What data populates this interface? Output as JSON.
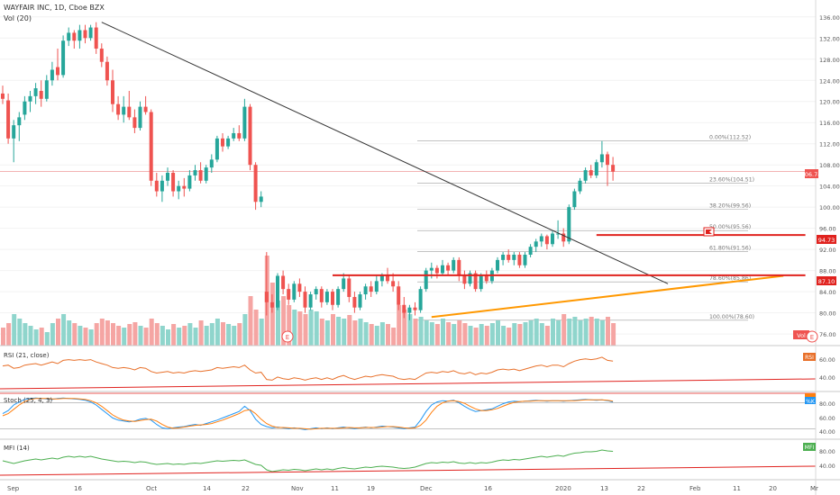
{
  "header": {
    "title": "WAYFAIR INC, 1D, Cboe BZX",
    "vol_label": "Vol (20)"
  },
  "panes": {
    "rsi": {
      "label": "RSI (21, close)",
      "badge": "RSI",
      "ticks": [
        "60.00",
        "40.00"
      ]
    },
    "stoch": {
      "label": "Stoch (25, 4, 3)",
      "badge": "%K",
      "ticks": [
        "80.00",
        "60.00",
        "40.00"
      ]
    },
    "mfi": {
      "label": "MFI (14)",
      "badge": "MFI",
      "ticks": [
        "80.00",
        "40.00"
      ]
    }
  },
  "price_axis": {
    "ticks": [
      "136.00",
      "132.00",
      "128.00",
      "124.00",
      "120.00",
      "116.00",
      "112.00",
      "108.00",
      "104.00",
      "100.00",
      "96.00",
      "92.00",
      "88.00",
      "84.00",
      "80.00",
      "76.00"
    ]
  },
  "price_badges": {
    "last": "106.74",
    "level_upper": "94.73",
    "level_lower": "87.10",
    "vol": "Vol"
  },
  "fibonacci": [
    {
      "text": "0.00%(112.52)",
      "price": 112.52
    },
    {
      "text": "23.60%(104.51)",
      "price": 104.51
    },
    {
      "text": "38.20%(99.56)",
      "price": 99.56
    },
    {
      "text": "50.00%(95.56)",
      "price": 95.56
    },
    {
      "text": "61.80%(91.56)",
      "price": 91.56
    },
    {
      "text": "78.60%(85.86)",
      "price": 85.86
    },
    {
      "text": "100.00%(78.60)",
      "price": 78.6
    }
  ],
  "time_axis": [
    "Sep",
    "16",
    "Oct",
    "14",
    "22",
    "Nov",
    "11",
    "19",
    "Dec",
    "16",
    "2020",
    "13",
    "22",
    "Feb",
    "11",
    "20",
    "Mr"
  ],
  "earnings_markers": [
    "E",
    "E"
  ],
  "colors": {
    "up": "#26a69a",
    "down": "#ef5350",
    "support": "#e0221e",
    "trend_up": "#ff9800",
    "trend_down": "#333333",
    "rsi": "#e8702a",
    "stoch_k": "#2196f3",
    "stoch_d": "#ff7f0e",
    "mfi": "#4caf50"
  },
  "chart_data": {
    "type": "candlestick",
    "ylim": [
      75.5,
      137.5
    ],
    "candles": [
      {
        "o": 121.5,
        "h": 123.0,
        "l": 119.5,
        "c": 120.5
      },
      {
        "o": 120.2,
        "h": 121.5,
        "l": 112.0,
        "c": 113.0
      },
      {
        "o": 113.0,
        "h": 116.5,
        "l": 108.5,
        "c": 115.5
      },
      {
        "o": 115.5,
        "h": 118.0,
        "l": 112.5,
        "c": 117.0
      },
      {
        "o": 117.5,
        "h": 121.0,
        "l": 116.5,
        "c": 120.0
      },
      {
        "o": 120.0,
        "h": 122.0,
        "l": 118.0,
        "c": 121.0
      },
      {
        "o": 121.0,
        "h": 123.5,
        "l": 119.5,
        "c": 122.5
      },
      {
        "o": 122.0,
        "h": 124.0,
        "l": 119.0,
        "c": 120.5
      },
      {
        "o": 120.5,
        "h": 125.0,
        "l": 120.0,
        "c": 124.0
      },
      {
        "o": 124.0,
        "h": 127.5,
        "l": 123.0,
        "c": 126.0
      },
      {
        "o": 126.5,
        "h": 130.0,
        "l": 124.0,
        "c": 125.0
      },
      {
        "o": 125.0,
        "h": 132.5,
        "l": 124.5,
        "c": 131.5
      },
      {
        "o": 131.5,
        "h": 134.0,
        "l": 130.5,
        "c": 133.0
      },
      {
        "o": 133.0,
        "h": 133.5,
        "l": 130.0,
        "c": 131.5
      },
      {
        "o": 131.5,
        "h": 134.5,
        "l": 130.0,
        "c": 133.5
      },
      {
        "o": 133.5,
        "h": 134.5,
        "l": 131.0,
        "c": 132.0
      },
      {
        "o": 132.0,
        "h": 134.5,
        "l": 131.5,
        "c": 134.0
      },
      {
        "o": 134.0,
        "h": 135.0,
        "l": 129.0,
        "c": 130.0
      },
      {
        "o": 130.0,
        "h": 131.0,
        "l": 126.5,
        "c": 127.5
      },
      {
        "o": 127.5,
        "h": 128.5,
        "l": 123.0,
        "c": 124.0
      },
      {
        "o": 124.0,
        "h": 126.0,
        "l": 118.0,
        "c": 119.5
      },
      {
        "o": 119.5,
        "h": 121.0,
        "l": 116.5,
        "c": 117.5
      },
      {
        "o": 117.5,
        "h": 121.0,
        "l": 116.0,
        "c": 119.0
      },
      {
        "o": 119.0,
        "h": 122.0,
        "l": 116.5,
        "c": 117.0
      },
      {
        "o": 117.0,
        "h": 118.5,
        "l": 114.0,
        "c": 115.0
      },
      {
        "o": 115.0,
        "h": 120.0,
        "l": 114.5,
        "c": 119.0
      },
      {
        "o": 119.0,
        "h": 121.0,
        "l": 117.5,
        "c": 118.0
      },
      {
        "o": 118.0,
        "h": 118.5,
        "l": 104.0,
        "c": 105.0
      },
      {
        "o": 105.0,
        "h": 106.5,
        "l": 102.0,
        "c": 103.0
      },
      {
        "o": 103.0,
        "h": 106.0,
        "l": 101.0,
        "c": 105.0
      },
      {
        "o": 105.0,
        "h": 107.5,
        "l": 104.0,
        "c": 106.5
      },
      {
        "o": 106.5,
        "h": 107.0,
        "l": 102.0,
        "c": 103.0
      },
      {
        "o": 103.0,
        "h": 105.0,
        "l": 101.5,
        "c": 104.0
      },
      {
        "o": 104.0,
        "h": 105.5,
        "l": 102.0,
        "c": 103.5
      },
      {
        "o": 103.5,
        "h": 107.0,
        "l": 103.0,
        "c": 106.0
      },
      {
        "o": 106.0,
        "h": 108.0,
        "l": 105.0,
        "c": 107.0
      },
      {
        "o": 107.0,
        "h": 108.5,
        "l": 104.5,
        "c": 105.0
      },
      {
        "o": 105.0,
        "h": 108.0,
        "l": 104.5,
        "c": 107.5
      },
      {
        "o": 107.5,
        "h": 110.0,
        "l": 106.5,
        "c": 109.0
      },
      {
        "o": 109.0,
        "h": 113.5,
        "l": 108.5,
        "c": 113.0
      },
      {
        "o": 113.0,
        "h": 114.0,
        "l": 110.5,
        "c": 111.5
      },
      {
        "o": 111.5,
        "h": 113.5,
        "l": 111.0,
        "c": 113.0
      },
      {
        "o": 113.0,
        "h": 115.0,
        "l": 112.5,
        "c": 114.0
      },
      {
        "o": 114.0,
        "h": 115.5,
        "l": 112.5,
        "c": 113.0
      },
      {
        "o": 113.0,
        "h": 120.5,
        "l": 112.5,
        "c": 119.0
      },
      {
        "o": 119.0,
        "h": 119.5,
        "l": 107.0,
        "c": 108.0
      },
      {
        "o": 108.0,
        "h": 108.5,
        "l": 99.5,
        "c": 101.0
      },
      {
        "o": 101.0,
        "h": 103.0,
        "l": 100.0,
        "c": 102.0
      },
      {
        "o": 84.0,
        "h": 91.5,
        "l": 79.5,
        "c": 82.0
      },
      {
        "o": 82.0,
        "h": 83.5,
        "l": 80.0,
        "c": 81.0
      },
      {
        "o": 81.0,
        "h": 87.5,
        "l": 80.5,
        "c": 87.0
      },
      {
        "o": 87.0,
        "h": 88.0,
        "l": 83.5,
        "c": 84.5
      },
      {
        "o": 84.5,
        "h": 85.5,
        "l": 81.5,
        "c": 82.5
      },
      {
        "o": 82.5,
        "h": 86.0,
        "l": 82.0,
        "c": 85.5
      },
      {
        "o": 85.5,
        "h": 86.5,
        "l": 83.0,
        "c": 84.0
      },
      {
        "o": 84.0,
        "h": 85.0,
        "l": 80.0,
        "c": 81.0
      },
      {
        "o": 81.0,
        "h": 84.0,
        "l": 80.5,
        "c": 83.5
      },
      {
        "o": 83.5,
        "h": 85.0,
        "l": 82.5,
        "c": 84.5
      },
      {
        "o": 84.5,
        "h": 85.0,
        "l": 81.0,
        "c": 82.0
      },
      {
        "o": 82.0,
        "h": 84.5,
        "l": 81.5,
        "c": 84.0
      },
      {
        "o": 84.0,
        "h": 84.5,
        "l": 80.5,
        "c": 81.5
      },
      {
        "o": 81.5,
        "h": 85.0,
        "l": 81.0,
        "c": 84.5
      },
      {
        "o": 84.5,
        "h": 87.5,
        "l": 84.0,
        "c": 86.5
      },
      {
        "o": 86.5,
        "h": 87.0,
        "l": 82.0,
        "c": 83.0
      },
      {
        "o": 83.0,
        "h": 84.0,
        "l": 80.0,
        "c": 81.0
      },
      {
        "o": 81.0,
        "h": 84.0,
        "l": 80.5,
        "c": 83.5
      },
      {
        "o": 83.5,
        "h": 85.5,
        "l": 82.5,
        "c": 85.0
      },
      {
        "o": 85.0,
        "h": 86.0,
        "l": 83.0,
        "c": 84.0
      },
      {
        "o": 84.0,
        "h": 87.0,
        "l": 83.5,
        "c": 86.0
      },
      {
        "o": 86.0,
        "h": 87.5,
        "l": 85.0,
        "c": 87.0
      },
      {
        "o": 87.0,
        "h": 88.5,
        "l": 85.5,
        "c": 86.0
      },
      {
        "o": 86.0,
        "h": 87.5,
        "l": 84.0,
        "c": 85.0
      },
      {
        "o": 85.0,
        "h": 86.0,
        "l": 80.5,
        "c": 81.5
      },
      {
        "o": 81.5,
        "h": 83.0,
        "l": 79.0,
        "c": 80.0
      },
      {
        "o": 80.0,
        "h": 81.5,
        "l": 78.6,
        "c": 81.0
      },
      {
        "o": 81.0,
        "h": 82.0,
        "l": 79.5,
        "c": 80.5
      },
      {
        "o": 80.5,
        "h": 85.0,
        "l": 80.0,
        "c": 84.5
      },
      {
        "o": 84.5,
        "h": 88.5,
        "l": 84.0,
        "c": 88.0
      },
      {
        "o": 88.0,
        "h": 89.5,
        "l": 86.5,
        "c": 88.5
      },
      {
        "o": 88.5,
        "h": 89.0,
        "l": 86.5,
        "c": 87.5
      },
      {
        "o": 87.5,
        "h": 90.0,
        "l": 87.0,
        "c": 89.0
      },
      {
        "o": 89.0,
        "h": 89.5,
        "l": 87.0,
        "c": 88.0
      },
      {
        "o": 88.0,
        "h": 90.5,
        "l": 87.5,
        "c": 90.0
      },
      {
        "o": 90.0,
        "h": 90.5,
        "l": 86.0,
        "c": 87.0
      },
      {
        "o": 87.0,
        "h": 88.0,
        "l": 84.5,
        "c": 85.5
      },
      {
        "o": 85.5,
        "h": 88.0,
        "l": 85.0,
        "c": 87.5
      },
      {
        "o": 87.5,
        "h": 88.0,
        "l": 84.0,
        "c": 84.5
      },
      {
        "o": 84.5,
        "h": 87.5,
        "l": 84.0,
        "c": 87.0
      },
      {
        "o": 87.0,
        "h": 88.0,
        "l": 85.5,
        "c": 86.0
      },
      {
        "o": 86.0,
        "h": 88.5,
        "l": 85.5,
        "c": 88.0
      },
      {
        "o": 88.0,
        "h": 90.5,
        "l": 87.5,
        "c": 90.0
      },
      {
        "o": 90.0,
        "h": 91.5,
        "l": 89.0,
        "c": 91.0
      },
      {
        "o": 91.0,
        "h": 92.0,
        "l": 89.5,
        "c": 90.0
      },
      {
        "o": 90.0,
        "h": 91.5,
        "l": 89.0,
        "c": 91.0
      },
      {
        "o": 91.0,
        "h": 91.5,
        "l": 88.5,
        "c": 89.0
      },
      {
        "o": 89.0,
        "h": 91.5,
        "l": 88.5,
        "c": 91.0
      },
      {
        "o": 91.0,
        "h": 93.0,
        "l": 90.5,
        "c": 92.5
      },
      {
        "o": 92.5,
        "h": 94.0,
        "l": 91.5,
        "c": 93.5
      },
      {
        "o": 93.5,
        "h": 95.0,
        "l": 92.5,
        "c": 94.5
      },
      {
        "o": 94.5,
        "h": 94.8,
        "l": 92.0,
        "c": 93.0
      },
      {
        "o": 93.0,
        "h": 95.5,
        "l": 92.5,
        "c": 95.0
      },
      {
        "o": 95.0,
        "h": 97.5,
        "l": 94.0,
        "c": 95.0
      },
      {
        "o": 95.0,
        "h": 96.0,
        "l": 92.5,
        "c": 93.5
      },
      {
        "o": 93.5,
        "h": 100.5,
        "l": 93.0,
        "c": 100.0
      },
      {
        "o": 100.0,
        "h": 103.5,
        "l": 99.5,
        "c": 103.0
      },
      {
        "o": 103.0,
        "h": 105.5,
        "l": 102.5,
        "c": 105.0
      },
      {
        "o": 105.0,
        "h": 107.5,
        "l": 104.5,
        "c": 107.0
      },
      {
        "o": 107.0,
        "h": 108.0,
        "l": 105.5,
        "c": 106.0
      },
      {
        "o": 106.0,
        "h": 109.0,
        "l": 105.5,
        "c": 108.5
      },
      {
        "o": 108.5,
        "h": 112.52,
        "l": 107.5,
        "c": 110.0
      },
      {
        "o": 110.0,
        "h": 110.5,
        "l": 104.0,
        "c": 108.0
      },
      {
        "o": 108.0,
        "h": 109.5,
        "l": 105.0,
        "c": 106.74
      }
    ],
    "volume": [
      0.2,
      0.25,
      0.35,
      0.3,
      0.25,
      0.22,
      0.18,
      0.2,
      0.15,
      0.25,
      0.3,
      0.35,
      0.28,
      0.25,
      0.22,
      0.2,
      0.18,
      0.25,
      0.3,
      0.28,
      0.25,
      0.22,
      0.2,
      0.24,
      0.26,
      0.22,
      0.2,
      0.3,
      0.25,
      0.22,
      0.18,
      0.24,
      0.2,
      0.22,
      0.25,
      0.2,
      0.28,
      0.22,
      0.25,
      0.3,
      0.26,
      0.24,
      0.22,
      0.25,
      0.35,
      0.55,
      0.4,
      0.3,
      1.0,
      0.7,
      0.5,
      0.55,
      0.45,
      0.4,
      0.38,
      0.35,
      0.4,
      0.38,
      0.3,
      0.28,
      0.35,
      0.32,
      0.3,
      0.34,
      0.28,
      0.3,
      0.26,
      0.24,
      0.22,
      0.26,
      0.24,
      0.2,
      0.45,
      0.4,
      0.35,
      0.3,
      0.32,
      0.28,
      0.26,
      0.24,
      0.3,
      0.26,
      0.24,
      0.28,
      0.25,
      0.22,
      0.2,
      0.24,
      0.22,
      0.25,
      0.28,
      0.22,
      0.2,
      0.25,
      0.24,
      0.26,
      0.28,
      0.3,
      0.25,
      0.22,
      0.3,
      0.28,
      0.35,
      0.3,
      0.32,
      0.28,
      0.3,
      0.32,
      0.3,
      0.28,
      0.32,
      0.25
    ],
    "rsi": [
      55,
      56,
      52,
      53,
      56,
      57,
      58,
      56,
      58,
      60,
      58,
      62,
      63,
      62,
      63,
      62,
      63,
      60,
      58,
      56,
      53,
      52,
      53,
      52,
      50,
      53,
      52,
      48,
      46,
      47,
      48,
      46,
      47,
      46,
      48,
      49,
      48,
      49,
      50,
      53,
      52,
      53,
      54,
      53,
      56,
      50,
      46,
      47,
      38,
      37,
      41,
      39,
      38,
      40,
      39,
      37,
      39,
      40,
      38,
      40,
      38,
      41,
      43,
      40,
      38,
      40,
      42,
      41,
      43,
      44,
      43,
      42,
      39,
      38,
      39,
      38,
      42,
      46,
      47,
      46,
      48,
      47,
      49,
      46,
      45,
      47,
      44,
      46,
      45,
      47,
      50,
      51,
      50,
      51,
      49,
      51,
      53,
      55,
      56,
      54,
      56,
      56,
      54,
      58,
      61,
      63,
      64,
      63,
      64,
      66,
      62,
      61
    ],
    "stoch_k": [
      55,
      62,
      75,
      82,
      88,
      90,
      91,
      90,
      89,
      88,
      90,
      91,
      90,
      89,
      88,
      86,
      82,
      75,
      65,
      55,
      45,
      40,
      38,
      36,
      38,
      42,
      44,
      40,
      30,
      22,
      20,
      22,
      24,
      25,
      28,
      30,
      28,
      32,
      36,
      40,
      45,
      50,
      55,
      60,
      72,
      62,
      42,
      30,
      25,
      22,
      24,
      22,
      20,
      22,
      20,
      18,
      20,
      22,
      20,
      22,
      20,
      22,
      24,
      22,
      20,
      22,
      24,
      22,
      24,
      26,
      25,
      24,
      22,
      20,
      22,
      24,
      40,
      60,
      75,
      82,
      85,
      84,
      86,
      80,
      72,
      65,
      60,
      62,
      64,
      66,
      72,
      78,
      82,
      84,
      83,
      84,
      85,
      86,
      85,
      84,
      85,
      85,
      84,
      85,
      86,
      87,
      88,
      87,
      86,
      87,
      85,
      82
    ],
    "stoch_d": [
      50,
      55,
      65,
      75,
      83,
      88,
      90,
      90,
      90,
      89,
      89,
      90,
      90,
      90,
      89,
      88,
      85,
      80,
      72,
      62,
      52,
      45,
      40,
      38,
      37,
      39,
      41,
      42,
      38,
      30,
      24,
      21,
      22,
      24,
      26,
      28,
      29,
      30,
      32,
      36,
      40,
      45,
      50,
      55,
      62,
      64,
      55,
      42,
      32,
      26,
      23,
      23,
      22,
      21,
      21,
      20,
      19,
      20,
      21,
      21,
      21,
      21,
      22,
      23,
      22,
      22,
      23,
      23,
      23,
      24,
      25,
      25,
      24,
      22,
      21,
      22,
      28,
      40,
      58,
      72,
      80,
      84,
      85,
      83,
      79,
      72,
      66,
      62,
      62,
      64,
      67,
      72,
      77,
      81,
      83,
      84,
      84,
      85,
      85,
      85,
      85,
      85,
      85,
      85,
      85,
      86,
      87,
      87,
      87,
      87,
      86,
      84
    ],
    "mfi": [
      58,
      55,
      52,
      55,
      58,
      60,
      62,
      60,
      62,
      64,
      62,
      66,
      68,
      66,
      68,
      66,
      68,
      65,
      62,
      60,
      58,
      56,
      57,
      56,
      54,
      56,
      55,
      52,
      50,
      51,
      52,
      50,
      51,
      50,
      52,
      53,
      52,
      54,
      56,
      58,
      57,
      58,
      59,
      58,
      60,
      55,
      50,
      48,
      38,
      34,
      36,
      38,
      37,
      39,
      38,
      36,
      38,
      40,
      38,
      40,
      38,
      41,
      43,
      41,
      40,
      42,
      44,
      43,
      45,
      46,
      45,
      44,
      42,
      41,
      42,
      44,
      48,
      52,
      54,
      53,
      55,
      54,
      56,
      53,
      52,
      54,
      52,
      54,
      53,
      55,
      58,
      60,
      59,
      61,
      60,
      62,
      64,
      66,
      68,
      66,
      68,
      70,
      68,
      72,
      75,
      76,
      78,
      78,
      79,
      82,
      80,
      79
    ],
    "trendlines": [
      {
        "name": "down-trend",
        "from": {
          "bar": 18,
          "price": 135.0
        },
        "to": {
          "bar": 121,
          "price": 85.5
        }
      },
      {
        "name": "up-trend",
        "from": {
          "bar": 78,
          "price": 79.2
        },
        "to": {
          "bar": 142,
          "price": 87.0
        }
      },
      {
        "name": "support-87",
        "from": {
          "bar": 60,
          "price": 87.1
        },
        "to": {
          "bar": 146,
          "price": 87.1
        }
      },
      {
        "name": "support-94",
        "from": {
          "bar": 108,
          "price": 94.73
        },
        "to": {
          "bar": 146,
          "price": 94.73
        }
      }
    ]
  }
}
